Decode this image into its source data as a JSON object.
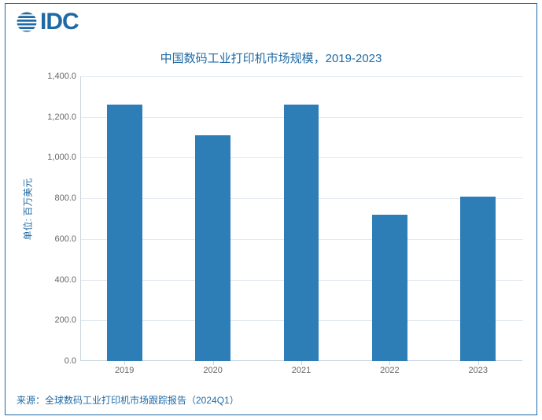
{
  "logo": {
    "text": "IDC",
    "color": "#1f6aa5"
  },
  "chart": {
    "type": "bar",
    "title": "中国数码工业打印机市场规模，2019-2023",
    "title_fontsize": 15,
    "title_color": "#1f6aa5",
    "y_axis_label": "单位: 百万美元",
    "y_axis_label_fontsize": 12,
    "y_axis_label_color": "#1f6aa5",
    "ylim": [
      0,
      1400
    ],
    "ytick_step": 200,
    "yticks": [
      "0.0",
      "200.0",
      "400.0",
      "600.0",
      "800.0",
      "1,000.0",
      "1,200.0",
      "1,400.0"
    ],
    "categories": [
      "2019",
      "2020",
      "2021",
      "2022",
      "2023"
    ],
    "values": [
      1260,
      1110,
      1260,
      720,
      810
    ],
    "bar_color": "#2d7db7",
    "bar_width_ratio": 0.4,
    "background_color": "#ffffff",
    "grid_color": "#e2e9ef",
    "axis_line_color": "#c9d6df",
    "tick_font_color": "#666666",
    "tick_fontsize": 11,
    "border_color": "#1f6aa5"
  },
  "source": "来源：全球数码工业打印机市场跟踪报告（2024Q1）"
}
